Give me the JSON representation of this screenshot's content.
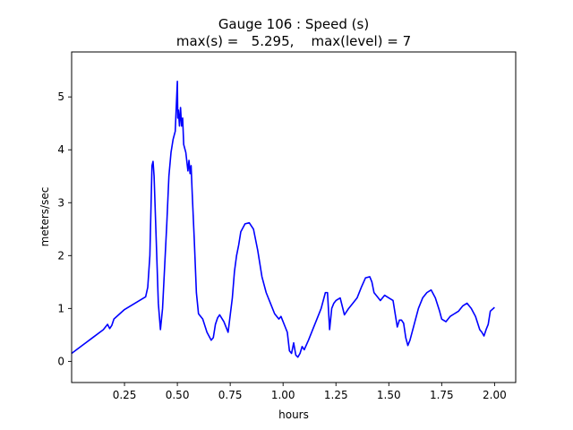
{
  "chart_data": {
    "type": "line",
    "title": "Gauge 106 : Speed (s)",
    "subtitle": "max(s) =   5.295,    max(level) = 7",
    "xlabel": "hours",
    "ylabel": "meters/sec",
    "xlim": [
      0.0,
      2.1
    ],
    "ylim": [
      -0.4,
      5.85
    ],
    "xticks": [
      0.25,
      0.5,
      0.75,
      1.0,
      1.25,
      1.5,
      1.75,
      2.0
    ],
    "xtick_labels": [
      "0.25",
      "0.50",
      "0.75",
      "1.00",
      "1.25",
      "1.50",
      "1.75",
      "2.00"
    ],
    "yticks": [
      0,
      1,
      2,
      3,
      4,
      5
    ],
    "ytick_labels": [
      "0",
      "1",
      "2",
      "3",
      "4",
      "5"
    ],
    "grid": false,
    "line_color": "#0000ff",
    "series": [
      {
        "x": [
          0.0,
          0.05,
          0.1,
          0.15,
          0.17,
          0.18,
          0.19,
          0.2,
          0.25,
          0.3,
          0.35,
          0.36,
          0.37,
          0.38,
          0.385,
          0.39,
          0.4,
          0.41,
          0.42,
          0.43,
          0.44,
          0.45,
          0.46,
          0.47,
          0.48,
          0.49,
          0.5,
          0.502,
          0.505,
          0.51,
          0.515,
          0.52,
          0.525,
          0.53,
          0.54,
          0.55,
          0.555,
          0.56,
          0.565,
          0.57,
          0.58,
          0.59,
          0.6,
          0.62,
          0.64,
          0.66,
          0.67,
          0.68,
          0.69,
          0.7,
          0.72,
          0.74,
          0.76,
          0.77,
          0.78,
          0.79,
          0.8,
          0.82,
          0.84,
          0.86,
          0.88,
          0.9,
          0.92,
          0.94,
          0.96,
          0.98,
          0.99,
          1.0,
          1.01,
          1.02,
          1.03,
          1.04,
          1.05,
          1.06,
          1.07,
          1.08,
          1.09,
          1.1,
          1.12,
          1.14,
          1.16,
          1.18,
          1.2,
          1.21,
          1.22,
          1.23,
          1.24,
          1.25,
          1.27,
          1.29,
          1.31,
          1.33,
          1.35,
          1.37,
          1.39,
          1.41,
          1.42,
          1.43,
          1.45,
          1.46,
          1.48,
          1.5,
          1.52,
          1.54,
          1.55,
          1.56,
          1.57,
          1.58,
          1.59,
          1.6,
          1.62,
          1.64,
          1.66,
          1.68,
          1.7,
          1.72,
          1.74,
          1.75,
          1.77,
          1.79,
          1.81,
          1.83,
          1.85,
          1.87,
          1.89,
          1.91,
          1.93,
          1.94,
          1.95,
          1.96,
          1.97,
          1.98,
          2.0
        ],
        "y": [
          0.15,
          0.3,
          0.45,
          0.6,
          0.7,
          0.62,
          0.68,
          0.8,
          0.98,
          1.1,
          1.22,
          1.4,
          2.0,
          3.7,
          3.78,
          3.5,
          2.3,
          1.1,
          0.6,
          1.0,
          1.8,
          2.6,
          3.5,
          3.95,
          4.2,
          4.35,
          5.295,
          4.6,
          4.75,
          4.45,
          4.8,
          4.45,
          4.6,
          4.1,
          3.95,
          3.6,
          3.8,
          3.55,
          3.7,
          3.2,
          2.3,
          1.3,
          0.9,
          0.8,
          0.55,
          0.4,
          0.45,
          0.7,
          0.82,
          0.88,
          0.75,
          0.55,
          1.2,
          1.7,
          2.0,
          2.2,
          2.45,
          2.6,
          2.62,
          2.5,
          2.1,
          1.6,
          1.3,
          1.1,
          0.9,
          0.8,
          0.85,
          0.75,
          0.65,
          0.55,
          0.2,
          0.15,
          0.35,
          0.12,
          0.08,
          0.15,
          0.28,
          0.22,
          0.4,
          0.6,
          0.8,
          1.0,
          1.3,
          1.3,
          0.6,
          1.0,
          1.1,
          1.15,
          1.2,
          0.88,
          1.0,
          1.1,
          1.2,
          1.4,
          1.58,
          1.6,
          1.5,
          1.3,
          1.2,
          1.15,
          1.25,
          1.2,
          1.15,
          0.65,
          0.78,
          0.78,
          0.72,
          0.45,
          0.3,
          0.4,
          0.7,
          1.0,
          1.2,
          1.3,
          1.35,
          1.2,
          0.95,
          0.8,
          0.75,
          0.85,
          0.9,
          0.95,
          1.05,
          1.1,
          1.0,
          0.85,
          0.6,
          0.55,
          0.48,
          0.6,
          0.7,
          0.95,
          1.02
        ]
      }
    ]
  }
}
